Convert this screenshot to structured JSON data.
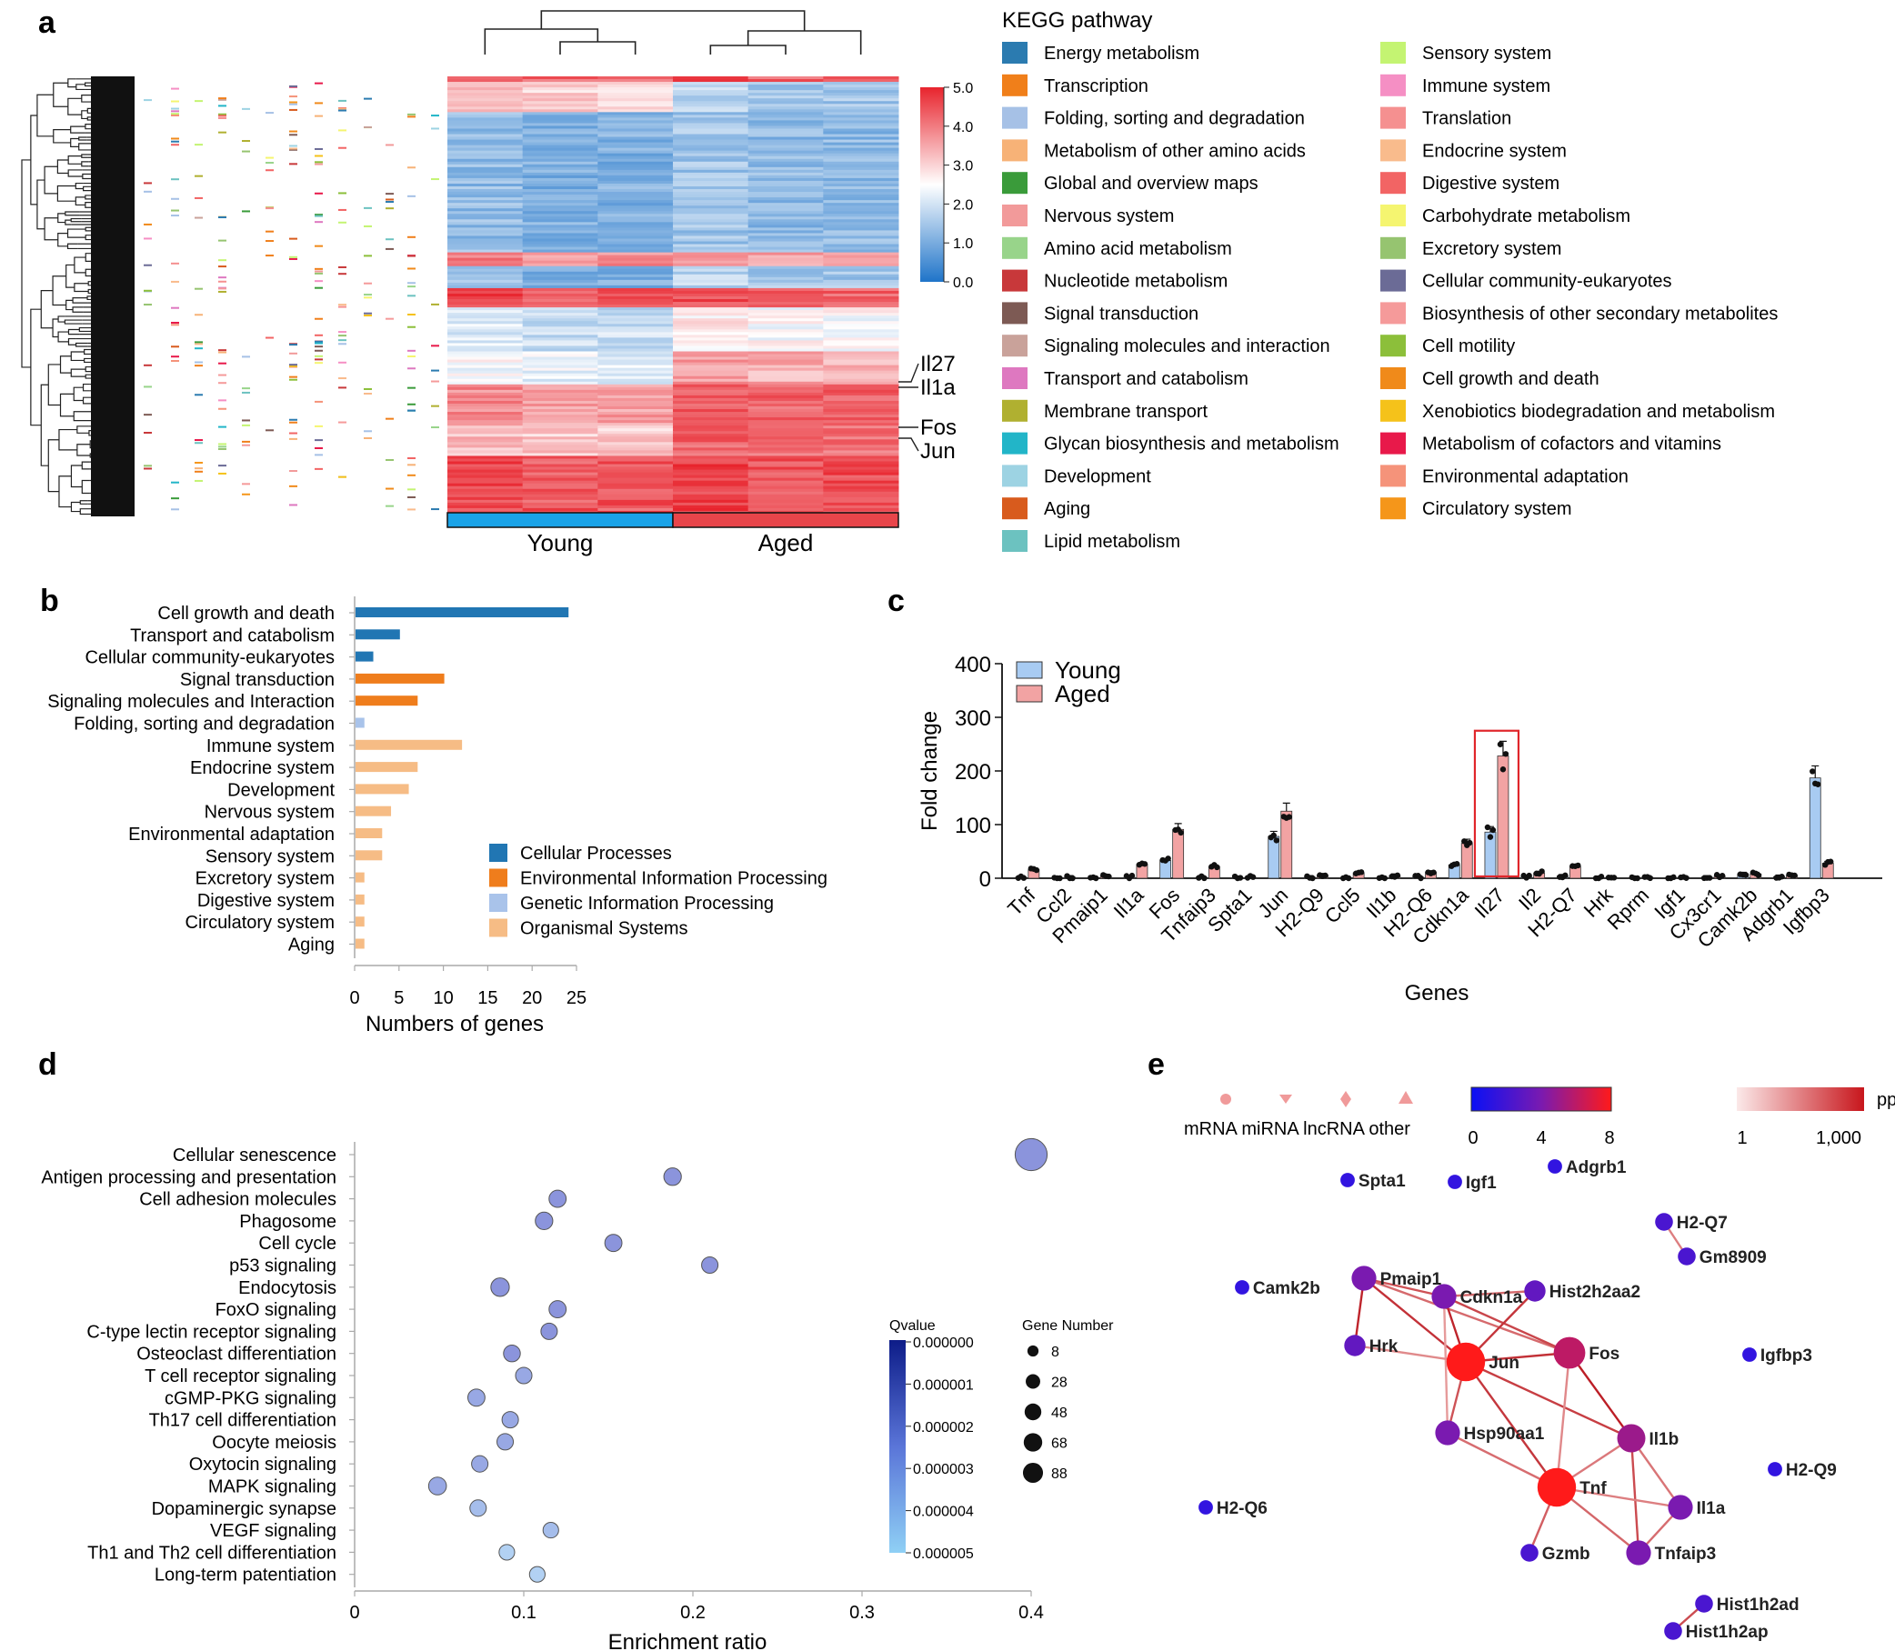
{
  "panels": {
    "a": {
      "label": "a",
      "groups": [
        "Young",
        "Aged"
      ],
      "group_colors": [
        "#1aa3e8",
        "#e8454a"
      ],
      "colorbar_ticks": [
        "5.0",
        "4.0",
        "3.0",
        "2.0",
        "1.0",
        "0.0"
      ],
      "gene_labels": [
        "Il27",
        "Il1a",
        "Fos",
        "Jun"
      ],
      "legend_title": "KEGG pathway",
      "legend_items": [
        {
          "label": "Energy metabolism",
          "color": "#2b7bb0"
        },
        {
          "label": "Transcription",
          "color": "#f07f1a"
        },
        {
          "label": "Folding, sorting and degradation",
          "color": "#a6c1e6"
        },
        {
          "label": "Metabolism of other amino acids",
          "color": "#f7b277"
        },
        {
          "label": "Global and overview maps",
          "color": "#3a9b3a"
        },
        {
          "label": "Nervous system",
          "color": "#f29a9a"
        },
        {
          "label": "Amino acid metabolism",
          "color": "#98d48a"
        },
        {
          "label": "Nucleotide metabolism",
          "color": "#c8383a"
        },
        {
          "label": "Signal transduction",
          "color": "#7d5a54"
        },
        {
          "label": "Signaling molecules and interaction",
          "color": "#c9a29a"
        },
        {
          "label": "Transport and catabolism",
          "color": "#de78c0"
        },
        {
          "label": "Membrane transport",
          "color": "#b0b030"
        },
        {
          "label": "Glycan biosynthesis and metabolism",
          "color": "#22b5c8"
        },
        {
          "label": "Development",
          "color": "#9dd3e3"
        },
        {
          "label": "Aging",
          "color": "#d85b1d"
        },
        {
          "label": "Lipid metabolism",
          "color": "#6cc2c0"
        },
        {
          "label": "Sensory system",
          "color": "#c4f472"
        },
        {
          "label": "Immune system",
          "color": "#f58fc4"
        },
        {
          "label": "Translation",
          "color": "#f59090"
        },
        {
          "label": "Endocrine system",
          "color": "#f9bb8c"
        },
        {
          "label": "Digestive system",
          "color": "#f26464"
        },
        {
          "label": "Carbohydrate metabolism",
          "color": "#f5f570"
        },
        {
          "label": "Excretory system",
          "color": "#96c470"
        },
        {
          "label": "Cellular community-eukaryotes",
          "color": "#6b6b96"
        },
        {
          "label": "Biosynthesis of other secondary metabolites",
          "color": "#f59a9a"
        },
        {
          "label": "Cell motility",
          "color": "#8cbf3a"
        },
        {
          "label": "Cell growth and death",
          "color": "#f08a1a"
        },
        {
          "label": "Xenobiotics biodegradation and metabolism",
          "color": "#f5c21a"
        },
        {
          "label": "Metabolism of cofactors and vitamins",
          "color": "#e8194a"
        },
        {
          "label": "Environmental adaptation",
          "color": "#f5937a"
        },
        {
          "label": "Circulatory system",
          "color": "#f5961a"
        }
      ]
    },
    "b": {
      "label": "b"
    },
    "c": {
      "label": "c"
    },
    "d": {
      "label": "d"
    },
    "e": {
      "label": "e"
    }
  },
  "chart_data": [
    {
      "id": "b",
      "type": "bar",
      "orientation": "horizontal",
      "xlabel": "Numbers of genes",
      "xlim": [
        0,
        25
      ],
      "xticks": [
        "0",
        "5",
        "10",
        "15",
        "20",
        "25"
      ],
      "categories": [
        "Cell growth and death",
        "Transport and catabolism",
        "Cellular community-eukaryotes",
        "Signal transduction",
        "Signaling molecules and Interaction",
        "Folding, sorting and degradation",
        "Immune system",
        "Endocrine system",
        "Development",
        "Nervous system",
        "Environmental adaptation",
        "Sensory system",
        "Excretory system",
        "Digestive system",
        "Circulatory system",
        "Aging"
      ],
      "values": [
        24,
        5,
        2,
        10,
        7,
        1,
        12,
        7,
        6,
        4,
        3,
        3,
        1,
        1,
        1,
        1
      ],
      "groups": [
        0,
        0,
        0,
        1,
        1,
        2,
        3,
        3,
        3,
        3,
        3,
        3,
        3,
        3,
        3,
        3
      ],
      "legend": [
        {
          "label": "Cellular Processes",
          "color": "#2176b3"
        },
        {
          "label": "Environmental Information Processing",
          "color": "#ef7d1c"
        },
        {
          "label": "Genetic Information Processing",
          "color": "#a9c3ea"
        },
        {
          "label": "Organismal Systems",
          "color": "#f6bc85"
        }
      ]
    },
    {
      "id": "c",
      "type": "bar",
      "ylabel": "Fold change",
      "xlabel": "Genes",
      "ylim": [
        0,
        400
      ],
      "yticks": [
        "0",
        "100",
        "200",
        "300",
        "400"
      ],
      "categories": [
        "Tnf",
        "Ccl2",
        "Pmaip1",
        "Il1a",
        "Fos",
        "Tnfaip3",
        "Spta1",
        "Jun",
        "H2-Q9",
        "Ccl5",
        "Il1b",
        "H2-Q6",
        "Cdkn1a",
        "Il27",
        "Il2",
        "H2-Q7",
        "Hrk",
        "Rprm",
        "Igf1",
        "Cx3cr1",
        "Camk2b",
        "Adgrb1",
        "Igfbp3"
      ],
      "highlight": "Il27",
      "series": [
        {
          "name": "Young",
          "color": "#a8cbf2",
          "values": [
            2,
            1,
            1,
            2,
            33,
            2,
            1,
            78,
            2,
            1,
            1,
            2,
            25,
            86,
            2,
            4,
            1,
            1,
            1,
            2,
            8,
            3,
            187
          ]
        },
        {
          "name": "Aged",
          "color": "#f2a3a3",
          "values": [
            16,
            2,
            4,
            26,
            91,
            22,
            2,
            125,
            6,
            10,
            5,
            11,
            65,
            228,
            10,
            22,
            2,
            2,
            2,
            4,
            8,
            6,
            28
          ]
        }
      ]
    },
    {
      "id": "d",
      "type": "scatter",
      "xlabel": "Enrichment ratio",
      "xlim": [
        0,
        0.4
      ],
      "xticks": [
        "0",
        "0.1",
        "0.2",
        "0.3",
        "0.4"
      ],
      "categories": [
        "Cellular senescence",
        "Antigen processing and presentation",
        "Cell adhesion molecules",
        "Phagosome",
        "Cell cycle",
        "p53 signaling",
        "Endocytosis",
        "FoxO signaling",
        "C-type lectin receptor signaling",
        "Osteoclast differentiation",
        "T cell receptor signaling",
        "cGMP-PKG signaling",
        "Th17 cell differentiation",
        "Oocyte meiosis",
        "Oxytocin signaling",
        "MAPK signaling",
        "Dopaminergic synapse",
        "VEGF signaling",
        "Th1 and Th2 cell differentiation",
        "Long-term patentiation"
      ],
      "x": [
        0.4,
        0.188,
        0.12,
        0.112,
        0.153,
        0.21,
        0.086,
        0.12,
        0.115,
        0.093,
        0.1,
        0.072,
        0.092,
        0.089,
        0.074,
        0.049,
        0.073,
        0.116,
        0.09,
        0.108
      ],
      "gene_number": [
        88,
        15,
        14,
        15,
        14,
        12,
        18,
        14,
        12,
        13,
        12,
        14,
        12,
        12,
        12,
        16,
        12,
        10,
        10,
        10
      ],
      "qvalue": [
        1e-06,
        1e-06,
        1e-06,
        1e-06,
        1e-06,
        1e-06,
        1e-06,
        1e-06,
        1e-06,
        1e-06,
        2e-06,
        2e-06,
        2e-06,
        2e-06,
        2e-06,
        2e-06,
        3e-06,
        3e-06,
        4e-06,
        4e-06
      ],
      "qvalue_legend": {
        "title": "Qvalue",
        "ticks": [
          "0.000000",
          "0.000001",
          "0.000002",
          "0.000003",
          "0.000004",
          "0.000005"
        ]
      },
      "size_legend": {
        "title": "Gene Number",
        "values": [
          "8",
          "28",
          "48",
          "68",
          "88"
        ]
      }
    }
  ],
  "network": {
    "shape_legend": [
      "mRNA",
      "miRNA",
      "lncRNA",
      "other"
    ],
    "degree_legend_ticks": [
      "0",
      "4",
      "8"
    ],
    "ppi_legend": {
      "title": "ppi",
      "ticks": [
        "1",
        "1,000"
      ]
    },
    "nodes": [
      {
        "id": "Spta1",
        "size": 1
      },
      {
        "id": "Igf1",
        "size": 1
      },
      {
        "id": "Adgrb1",
        "size": 1
      },
      {
        "id": "H2-Q7",
        "size": 2
      },
      {
        "id": "Gm8909",
        "size": 2
      },
      {
        "id": "Camk2b",
        "size": 1
      },
      {
        "id": "Pmaip1",
        "size": 4
      },
      {
        "id": "Cdkn1a",
        "size": 4
      },
      {
        "id": "Hist2h2aa2",
        "size": 3
      },
      {
        "id": "Hrk",
        "size": 3
      },
      {
        "id": "Jun",
        "size": 8
      },
      {
        "id": "Fos",
        "size": 6
      },
      {
        "id": "Igfbp3",
        "size": 1
      },
      {
        "id": "Hsp90aa1",
        "size": 4
      },
      {
        "id": "Il1b",
        "size": 5
      },
      {
        "id": "Tnf",
        "size": 8
      },
      {
        "id": "H2-Q9",
        "size": 1
      },
      {
        "id": "H2-Q6",
        "size": 1
      },
      {
        "id": "Il1a",
        "size": 4
      },
      {
        "id": "Gzmb",
        "size": 2
      },
      {
        "id": "Tnfaip3",
        "size": 4
      },
      {
        "id": "Hist1h2ad",
        "size": 2
      },
      {
        "id": "Hist1h2ap",
        "size": 2
      }
    ],
    "edges": [
      [
        "H2-Q7",
        "Gm8909"
      ],
      [
        "Pmaip1",
        "Cdkn1a"
      ],
      [
        "Pmaip1",
        "Hrk"
      ],
      [
        "Pmaip1",
        "Jun"
      ],
      [
        "Pmaip1",
        "Fos"
      ],
      [
        "Cdkn1a",
        "Jun"
      ],
      [
        "Cdkn1a",
        "Fos"
      ],
      [
        "Cdkn1a",
        "Hist2h2aa2"
      ],
      [
        "Cdkn1a",
        "Hsp90aa1"
      ],
      [
        "Hist2h2aa2",
        "Jun"
      ],
      [
        "Hrk",
        "Jun"
      ],
      [
        "Jun",
        "Fos"
      ],
      [
        "Jun",
        "Hsp90aa1"
      ],
      [
        "Jun",
        "Tnf"
      ],
      [
        "Jun",
        "Il1b"
      ],
      [
        "Fos",
        "Il1b"
      ],
      [
        "Fos",
        "Tnf"
      ],
      [
        "Hsp90aa1",
        "Tnf"
      ],
      [
        "Il1b",
        "Tnf"
      ],
      [
        "Il1b",
        "Il1a"
      ],
      [
        "Il1b",
        "Tnfaip3"
      ],
      [
        "Tnf",
        "Il1a"
      ],
      [
        "Tnf",
        "Tnfaip3"
      ],
      [
        "Tnf",
        "Gzmb"
      ],
      [
        "Il1a",
        "Tnfaip3"
      ],
      [
        "Hist1h2ad",
        "Hist1h2ap"
      ]
    ]
  }
}
